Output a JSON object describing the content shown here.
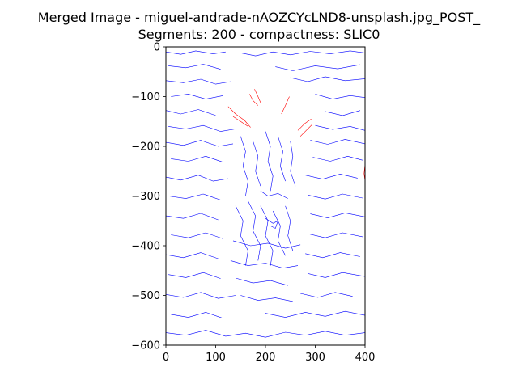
{
  "figure": {
    "title_line1": "Merged Image - miguel-andrade-nAOZCYcLND8-unsplash.jpg_POST_",
    "title_line2": "Segments: 200 - compactness: SLIC0"
  },
  "chart_data": {
    "type": "line",
    "title": "Merged Image - miguel-andrade-nAOZCYcLND8-unsplash.jpg_POST_\nSegments: 200 - compactness: SLIC0",
    "xlabel": "",
    "ylabel": "",
    "xlim": [
      0,
      400
    ],
    "ylim": [
      -600,
      0
    ],
    "x_ticks": [
      0,
      100,
      200,
      300,
      400
    ],
    "y_ticks": [
      0,
      -100,
      -200,
      -300,
      -400,
      -500,
      -600
    ],
    "x_tick_labels": [
      "0",
      "100",
      "200",
      "300",
      "400"
    ],
    "y_tick_labels": [
      "0",
      "−100",
      "−200",
      "−300",
      "−400",
      "−500",
      "−600"
    ],
    "grid": false,
    "colors": {
      "blue_segments": "#0000ff",
      "red_segments": "#ff0000"
    },
    "series": [
      {
        "color": "#ff0000",
        "segments": [
          [
            [
              125,
              -120
            ],
            [
              140,
              -135
            ],
            [
              158,
              -148
            ],
            [
              170,
              -162
            ]
          ],
          [
            [
              135,
              -140
            ],
            [
              150,
              -150
            ],
            [
              165,
              -160
            ]
          ],
          [
            [
              168,
              -95
            ],
            [
              175,
              -108
            ],
            [
              185,
              -118
            ]
          ],
          [
            [
              178,
              -85
            ],
            [
              185,
              -100
            ],
            [
              190,
              -112
            ]
          ],
          [
            [
              232,
              -135
            ],
            [
              240,
              -118
            ],
            [
              248,
              -100
            ]
          ],
          [
            [
              265,
              -168
            ],
            [
              278,
              -155
            ],
            [
              292,
              -145
            ]
          ],
          [
            [
              270,
              -180
            ],
            [
              282,
              -168
            ],
            [
              295,
              -155
            ]
          ],
          [
            [
              400,
              -235
            ],
            [
              398,
              -255
            ],
            [
              400,
              -270
            ]
          ]
        ]
      },
      {
        "color": "#0000ff",
        "segments": [
          [
            [
              0,
              -10
            ],
            [
              30,
              -15
            ],
            [
              60,
              -8
            ],
            [
              95,
              -14
            ],
            [
              120,
              -10
            ]
          ],
          [
            [
              150,
              -12
            ],
            [
              180,
              -18
            ],
            [
              215,
              -10
            ],
            [
              250,
              -16
            ],
            [
              290,
              -9
            ],
            [
              330,
              -14
            ],
            [
              370,
              -8
            ],
            [
              400,
              -12
            ]
          ],
          [
            [
              5,
              -38
            ],
            [
              40,
              -42
            ],
            [
              75,
              -35
            ],
            [
              110,
              -45
            ]
          ],
          [
            [
              220,
              -40
            ],
            [
              255,
              -48
            ],
            [
              300,
              -38
            ],
            [
              345,
              -44
            ],
            [
              390,
              -36
            ]
          ],
          [
            [
              0,
              -68
            ],
            [
              35,
              -72
            ],
            [
              70,
              -65
            ],
            [
              100,
              -75
            ],
            [
              130,
              -70
            ]
          ],
          [
            [
              250,
              -62
            ],
            [
              285,
              -70
            ],
            [
              320,
              -60
            ],
            [
              360,
              -68
            ],
            [
              400,
              -64
            ]
          ],
          [
            [
              10,
              -100
            ],
            [
              45,
              -95
            ],
            [
              80,
              -105
            ],
            [
              115,
              -98
            ]
          ],
          [
            [
              300,
              -95
            ],
            [
              335,
              -105
            ],
            [
              370,
              -98
            ],
            [
              400,
              -102
            ]
          ],
          [
            [
              0,
              -128
            ],
            [
              30,
              -135
            ],
            [
              65,
              -126
            ],
            [
              100,
              -138
            ]
          ],
          [
            [
              320,
              -130
            ],
            [
              355,
              -138
            ],
            [
              390,
              -128
            ]
          ],
          [
            [
              5,
              -160
            ],
            [
              40,
              -165
            ],
            [
              75,
              -158
            ],
            [
              110,
              -170
            ],
            [
              140,
              -165
            ]
          ],
          [
            [
              300,
              -158
            ],
            [
              335,
              -166
            ],
            [
              370,
              -160
            ],
            [
              400,
              -168
            ]
          ],
          [
            [
              0,
              -192
            ],
            [
              35,
              -198
            ],
            [
              70,
              -188
            ],
            [
              105,
              -200
            ],
            [
              135,
              -195
            ]
          ],
          [
            [
              290,
              -188
            ],
            [
              325,
              -196
            ],
            [
              360,
              -186
            ],
            [
              400,
              -195
            ]
          ],
          [
            [
              10,
              -225
            ],
            [
              45,
              -230
            ],
            [
              80,
              -220
            ],
            [
              115,
              -232
            ]
          ],
          [
            [
              295,
              -222
            ],
            [
              330,
              -230
            ],
            [
              365,
              -220
            ],
            [
              395,
              -228
            ]
          ],
          [
            [
              0,
              -262
            ],
            [
              30,
              -268
            ],
            [
              65,
              -258
            ],
            [
              95,
              -270
            ],
            [
              125,
              -265
            ]
          ],
          [
            [
              280,
              -258
            ],
            [
              315,
              -266
            ],
            [
              350,
              -256
            ],
            [
              385,
              -264
            ]
          ],
          [
            [
              5,
              -300
            ],
            [
              40,
              -305
            ],
            [
              75,
              -296
            ],
            [
              110,
              -308
            ]
          ],
          [
            [
              285,
              -298
            ],
            [
              320,
              -306
            ],
            [
              355,
              -296
            ],
            [
              395,
              -304
            ]
          ],
          [
            [
              0,
              -340
            ],
            [
              35,
              -345
            ],
            [
              70,
              -335
            ],
            [
              105,
              -348
            ]
          ],
          [
            [
              290,
              -336
            ],
            [
              325,
              -344
            ],
            [
              360,
              -334
            ],
            [
              400,
              -342
            ]
          ],
          [
            [
              10,
              -378
            ],
            [
              45,
              -384
            ],
            [
              80,
              -374
            ],
            [
              115,
              -386
            ]
          ],
          [
            [
              285,
              -376
            ],
            [
              320,
              -384
            ],
            [
              355,
              -374
            ],
            [
              395,
              -382
            ]
          ],
          [
            [
              0,
              -418
            ],
            [
              35,
              -424
            ],
            [
              70,
              -414
            ],
            [
              105,
              -426
            ]
          ],
          [
            [
              280,
              -416
            ],
            [
              315,
              -424
            ],
            [
              350,
              -414
            ],
            [
              390,
              -422
            ]
          ],
          [
            [
              5,
              -458
            ],
            [
              40,
              -464
            ],
            [
              75,
              -454
            ],
            [
              110,
              -466
            ]
          ],
          [
            [
              285,
              -456
            ],
            [
              320,
              -464
            ],
            [
              355,
              -454
            ],
            [
              400,
              -462
            ]
          ],
          [
            [
              0,
              -498
            ],
            [
              35,
              -504
            ],
            [
              70,
              -494
            ],
            [
              105,
              -506
            ],
            [
              140,
              -500
            ]
          ],
          [
            [
              270,
              -496
            ],
            [
              305,
              -504
            ],
            [
              340,
              -494
            ],
            [
              375,
              -502
            ]
          ],
          [
            [
              10,
              -538
            ],
            [
              45,
              -544
            ],
            [
              80,
              -534
            ],
            [
              115,
              -546
            ]
          ],
          [
            [
              200,
              -536
            ],
            [
              240,
              -544
            ],
            [
              280,
              -534
            ],
            [
              320,
              -542
            ],
            [
              360,
              -532
            ],
            [
              400,
              -540
            ]
          ],
          [
            [
              0,
              -575
            ],
            [
              40,
              -580
            ],
            [
              80,
              -570
            ],
            [
              120,
              -582
            ],
            [
              160,
              -576
            ],
            [
              200,
              -584
            ],
            [
              240,
              -574
            ],
            [
              280,
              -580
            ],
            [
              320,
              -572
            ],
            [
              360,
              -580
            ],
            [
              400,
              -575
            ]
          ],
          [
            [
              150,
              -180
            ],
            [
              160,
              -210
            ],
            [
              155,
              -240
            ],
            [
              165,
              -270
            ],
            [
              160,
              -300
            ]
          ],
          [
            [
              175,
              -190
            ],
            [
              185,
              -220
            ],
            [
              180,
              -250
            ],
            [
              190,
              -280
            ]
          ],
          [
            [
              200,
              -170
            ],
            [
              210,
              -200
            ],
            [
              205,
              -230
            ],
            [
              215,
              -260
            ],
            [
              210,
              -290
            ]
          ],
          [
            [
              225,
              -180
            ],
            [
              235,
              -210
            ],
            [
              230,
              -240
            ],
            [
              240,
              -270
            ]
          ],
          [
            [
              250,
              -190
            ],
            [
              255,
              -220
            ],
            [
              250,
              -250
            ],
            [
              260,
              -280
            ]
          ],
          [
            [
              140,
              -320
            ],
            [
              155,
              -350
            ],
            [
              150,
              -380
            ],
            [
              165,
              -410
            ],
            [
              160,
              -440
            ]
          ],
          [
            [
              165,
              -310
            ],
            [
              180,
              -340
            ],
            [
              175,
              -370
            ],
            [
              190,
              -400
            ],
            [
              185,
              -430
            ]
          ],
          [
            [
              190,
              -320
            ],
            [
              205,
              -350
            ],
            [
              200,
              -380
            ],
            [
              215,
              -410
            ],
            [
              210,
              -440
            ]
          ],
          [
            [
              215,
              -330
            ],
            [
              230,
              -360
            ],
            [
              225,
              -390
            ],
            [
              240,
              -420
            ]
          ],
          [
            [
              240,
              -320
            ],
            [
              250,
              -350
            ],
            [
              245,
              -380
            ],
            [
              255,
              -410
            ]
          ],
          [
            [
              135,
              -390
            ],
            [
              170,
              -400
            ],
            [
              205,
              -395
            ],
            [
              240,
              -405
            ],
            [
              270,
              -398
            ]
          ],
          [
            [
              130,
              -430
            ],
            [
              165,
              -440
            ],
            [
              200,
              -435
            ],
            [
              235,
              -445
            ],
            [
              265,
              -440
            ]
          ],
          [
            [
              140,
              -465
            ],
            [
              175,
              -475
            ],
            [
              210,
              -470
            ],
            [
              245,
              -480
            ]
          ],
          [
            [
              150,
              -500
            ],
            [
              185,
              -510
            ],
            [
              220,
              -505
            ],
            [
              255,
              -512
            ]
          ],
          [
            [
              200,
              -345
            ],
            [
              215,
              -355
            ],
            [
              225,
              -350
            ],
            [
              220,
              -365
            ],
            [
              210,
              -360
            ]
          ],
          [
            [
              190,
              -290
            ],
            [
              205,
              -300
            ],
            [
              225,
              -295
            ],
            [
              245,
              -305
            ]
          ]
        ]
      }
    ]
  }
}
